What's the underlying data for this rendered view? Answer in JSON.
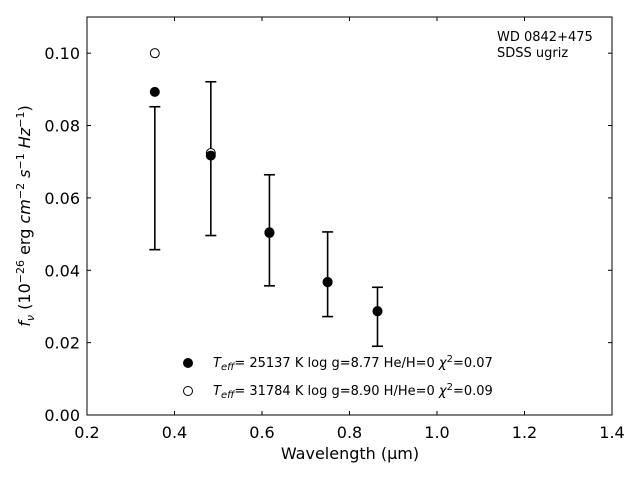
{
  "chart_data": {
    "type": "scatter",
    "annotation": [
      "WD 0842+475",
      "SDSS ugriz"
    ],
    "xlabel": "Wavelength (μm)",
    "ylabel_parts": {
      "f": "f",
      "nu": "ν",
      "pre": " (10",
      "exp26": "−26",
      "erg": " erg ",
      "cm": "cm",
      "exp2": "−2",
      "s": " s",
      "exp1": "−1",
      "hz": " Hz",
      "exp1b": "−1",
      "close": ")"
    },
    "xlim": [
      0.2,
      1.4
    ],
    "ylim": [
      0.0,
      0.11
    ],
    "xticks": [
      0.2,
      0.4,
      0.6,
      0.8,
      1.0,
      1.2,
      1.4
    ],
    "xtick_labels": [
      "0.2",
      "0.4",
      "0.6",
      "0.8",
      "1.0",
      "1.2",
      "1.4"
    ],
    "yticks": [
      0.0,
      0.02,
      0.04,
      0.06,
      0.08,
      0.1
    ],
    "ytick_labels": [
      "0.00",
      "0.02",
      "0.04",
      "0.06",
      "0.08",
      "0.10"
    ],
    "observed": {
      "x": [
        0.355,
        0.483,
        0.617,
        0.75,
        0.864
      ],
      "y_lo": [
        0.0457,
        0.0496,
        0.0357,
        0.0272,
        0.019
      ],
      "y_hi": [
        0.0852,
        0.0921,
        0.0664,
        0.0506,
        0.0353
      ]
    },
    "series": [
      {
        "marker": "filled-circle",
        "x": [
          0.355,
          0.483,
          0.617,
          0.75,
          0.864
        ],
        "y": [
          0.0893,
          0.0717,
          0.0503,
          0.0367,
          0.0287
        ],
        "label": {
          "t": "T",
          "eff": "eff",
          "text": "= 25137 K  log g=8.77  He/H=0  ",
          "chi": "χ",
          "sq": "2",
          "val": "=0.07"
        }
      },
      {
        "marker": "open-circle",
        "x": [
          0.355,
          0.483,
          0.617,
          0.75,
          0.864
        ],
        "y": [
          0.1,
          0.0724,
          0.0505,
          0.0368,
          0.0287
        ],
        "label": {
          "t": "T",
          "eff": "eff",
          "text": "= 31784 K  log g=8.90  H/He=0  ",
          "chi": "χ",
          "sq": "2",
          "val": "=0.09"
        }
      }
    ]
  }
}
